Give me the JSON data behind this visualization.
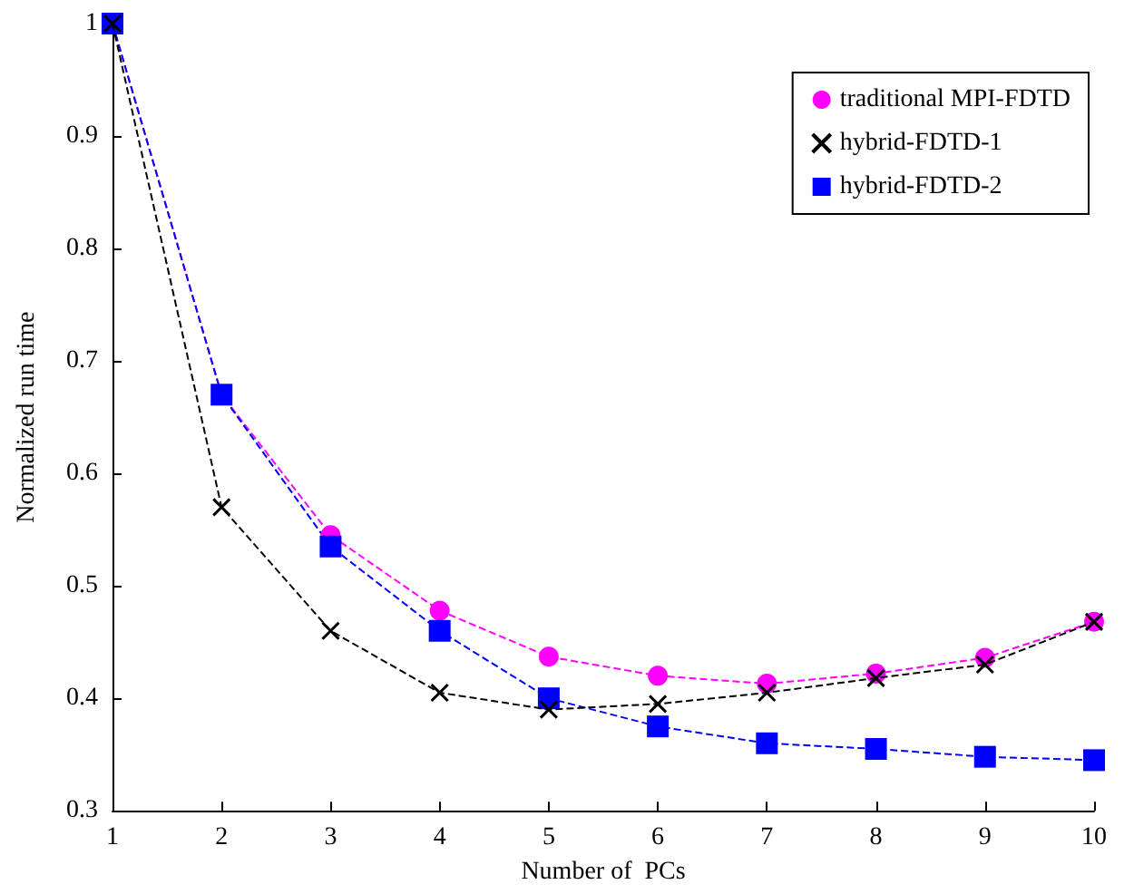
{
  "chart_data": {
    "type": "line",
    "xlabel": "Number of  PCs",
    "ylabel": "Normalized run time",
    "x": [
      1,
      2,
      3,
      4,
      5,
      6,
      7,
      8,
      9,
      10
    ],
    "series": [
      {
        "name": "traditional MPI-FDTD",
        "color": "#ff00ff",
        "marker": "circle",
        "values": [
          1,
          0.67,
          0.545,
          0.478,
          0.437,
          0.42,
          0.413,
          0.422,
          0.436,
          0.468
        ]
      },
      {
        "name": "hybrid-FDTD-1",
        "color": "#000000",
        "marker": "cross",
        "values": [
          1,
          0.57,
          0.46,
          0.405,
          0.39,
          0.395,
          0.405,
          0.418,
          0.43,
          0.468
        ]
      },
      {
        "name": "hybrid-FDTD-2",
        "color": "#0000ff",
        "marker": "square",
        "values": [
          1,
          0.67,
          0.535,
          0.46,
          0.4,
          0.375,
          0.36,
          0.355,
          0.348,
          0.345
        ]
      }
    ],
    "xlim": [
      1,
      10
    ],
    "xticks": [
      1,
      2,
      3,
      4,
      5,
      6,
      7,
      8,
      9,
      10
    ],
    "ylim": [
      0.3,
      1
    ],
    "yticks": [
      0.3,
      0.4,
      0.5,
      0.6,
      0.7,
      0.8,
      0.9,
      1
    ],
    "line_style": "dashed",
    "grid": false,
    "legend": "top right"
  }
}
